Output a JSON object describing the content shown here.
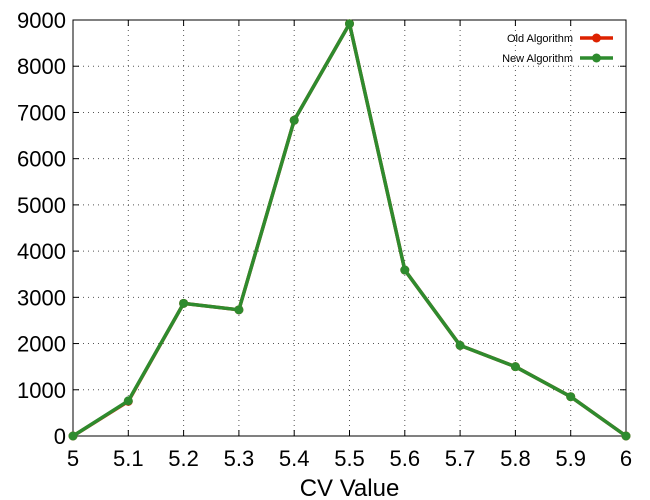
{
  "chart_data": {
    "type": "line",
    "xlabel": "CV Value",
    "ylabel": "",
    "xlim": [
      5,
      6
    ],
    "ylim": [
      0,
      9000
    ],
    "x_ticks": [
      "5",
      "5.1",
      "5.2",
      "5.3",
      "5.4",
      "5.5",
      "5.6",
      "5.7",
      "5.8",
      "5.9",
      "6"
    ],
    "y_ticks": [
      "0",
      "1000",
      "2000",
      "3000",
      "4000",
      "5000",
      "6000",
      "7000",
      "8000",
      "9000"
    ],
    "grid": true,
    "legend_position": "top-right",
    "x": [
      5.0,
      5.1,
      5.2,
      5.3,
      5.4,
      5.5,
      5.6,
      5.7,
      5.8,
      5.9,
      6.0
    ],
    "series": [
      {
        "name": "Old Algorithm",
        "color": "#dd2200",
        "values": [
          0,
          750,
          2870,
          2730,
          6830,
          8920,
          3590,
          1960,
          1500,
          850,
          0
        ]
      },
      {
        "name": "New Algorithm",
        "color": "#2e8b2e",
        "values": [
          0,
          760,
          2870,
          2730,
          6830,
          8920,
          3590,
          1960,
          1500,
          850,
          0
        ]
      }
    ]
  }
}
